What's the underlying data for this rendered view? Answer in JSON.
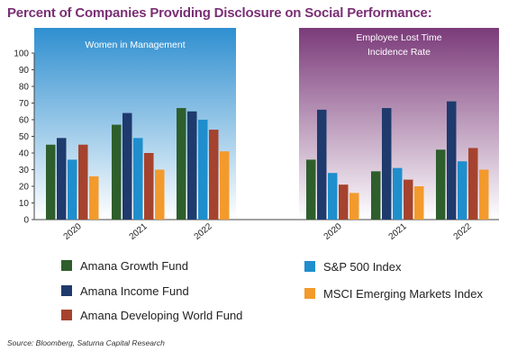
{
  "title": "Percent of Companies Providing Disclosure on Social Performance:",
  "source": "Source: Bloomberg, Saturna Capital Research",
  "colors": {
    "panel_left_top": "#2f8fd0",
    "panel_left_bottom": "#ffffff",
    "panel_right_top": "#7b3b7a",
    "panel_right_bottom": "#ffffff"
  },
  "chart_data": [
    {
      "type": "bar",
      "title": "Women in Management",
      "categories": [
        "2020",
        "2021",
        "2022"
      ],
      "ylim": [
        0,
        100
      ],
      "yticks": [
        "0",
        "10",
        "20",
        "30",
        "40",
        "50",
        "60",
        "70",
        "80",
        "90",
        "100"
      ],
      "series": [
        {
          "name": "Amana Growth Fund",
          "color": "#2e5e2c",
          "values": [
            45,
            57,
            67
          ]
        },
        {
          "name": "Amana Income Fund",
          "color": "#1f3a6d",
          "values": [
            49,
            64,
            65
          ]
        },
        {
          "name": "S&P 500 Index",
          "color": "#1f8ecd",
          "values": [
            36,
            49,
            60
          ]
        },
        {
          "name": "Amana Developing World Fund",
          "color": "#a5432e",
          "values": [
            45,
            40,
            54
          ]
        },
        {
          "name": "MSCI Emerging Markets Index",
          "color": "#f39a2c",
          "values": [
            26,
            30,
            41
          ]
        }
      ]
    },
    {
      "type": "bar",
      "title": [
        "Employee Lost Time",
        "Incidence Rate"
      ],
      "categories": [
        "2020",
        "2021",
        "2022"
      ],
      "ylim": [
        0,
        100
      ],
      "series": [
        {
          "name": "Amana Growth Fund",
          "color": "#2e5e2c",
          "values": [
            36,
            29,
            42
          ]
        },
        {
          "name": "Amana Income Fund",
          "color": "#1f3a6d",
          "values": [
            66,
            67,
            71
          ]
        },
        {
          "name": "S&P 500 Index",
          "color": "#1f8ecd",
          "values": [
            28,
            31,
            35
          ]
        },
        {
          "name": "Amana Developing World Fund",
          "color": "#a5432e",
          "values": [
            21,
            24,
            43
          ]
        },
        {
          "name": "MSCI Emerging Markets Index",
          "color": "#f39a2c",
          "values": [
            16,
            20,
            30
          ]
        }
      ]
    }
  ]
}
